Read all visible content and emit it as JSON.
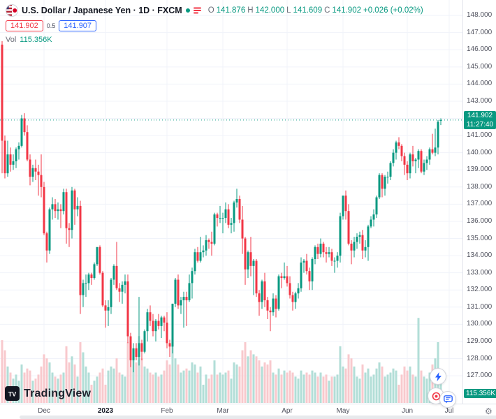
{
  "header": {
    "title": "U.S. Dollar / Japanese Yen · 1D · FXCM",
    "ohlc": {
      "o_label": "O",
      "o_value": "141.876",
      "h_label": "H",
      "h_value": "142.000",
      "l_label": "L",
      "l_value": "141.609",
      "c_label": "C",
      "c_value": "141.902",
      "change": "+0.026 (+0.02%)"
    },
    "bid": "141.902",
    "spread": "0.5",
    "ask": "141.907",
    "vol_label": "Vol",
    "vol_value": "115.356K"
  },
  "price_scale": {
    "price_tag": "141.902",
    "countdown": "11:27:40",
    "vol_tag": "115.356K"
  },
  "footer": {
    "logo_text": "TradingView",
    "gear_icon": "⚙"
  },
  "chart_data": {
    "type": "candlestick",
    "title": "U.S. Dollar / Japanese Yen",
    "timeframe": "1D",
    "exchange": "FXCM",
    "current_price": 141.902,
    "ylim": [
      126.8,
      148.2
    ],
    "y_ticks": [
      148,
      147,
      146,
      145,
      144,
      143,
      142,
      141,
      140,
      139,
      138,
      137,
      136,
      135,
      134,
      133,
      132,
      131,
      130,
      129,
      128,
      127
    ],
    "x_ticks": [
      {
        "label": "Dec",
        "i": 15
      },
      {
        "label": "2023",
        "i": 37,
        "major": true
      },
      {
        "label": "Feb",
        "i": 59
      },
      {
        "label": "Mar",
        "i": 79
      },
      {
        "label": "Apr",
        "i": 102
      },
      {
        "label": "May",
        "i": 122
      },
      {
        "label": "Jun",
        "i": 145
      },
      {
        "label": "Jul",
        "i": 160
      }
    ],
    "colors": {
      "up": "#089981",
      "down": "#f23645",
      "vol_up": "#b2ded7",
      "vol_down": "#f8c9cd",
      "grid": "#f0f3fa",
      "price_line": "#089981",
      "axis_text": "#51535f"
    },
    "volume_unit": "K",
    "candles": [
      [
        146.3,
        146.5,
        138.8,
        140.7,
        310
      ],
      [
        140.7,
        141.0,
        138.5,
        138.8,
        260
      ],
      [
        138.8,
        140.7,
        138.6,
        139.9,
        180
      ],
      [
        139.9,
        140.3,
        138.9,
        139.3,
        150
      ],
      [
        139.3,
        139.9,
        139.0,
        139.5,
        120
      ],
      [
        139.5,
        140.3,
        139.1,
        140.2,
        140
      ],
      [
        140.2,
        140.6,
        139.6,
        140.4,
        110
      ],
      [
        140.4,
        142.2,
        140.3,
        142.0,
        190
      ],
      [
        142.0,
        142.3,
        141.0,
        141.2,
        150
      ],
      [
        141.2,
        141.6,
        139.5,
        139.6,
        170
      ],
      [
        139.6,
        139.9,
        138.1,
        138.6,
        160
      ],
      [
        138.6,
        139.3,
        138.3,
        139.1,
        110
      ],
      [
        139.1,
        139.6,
        138.4,
        138.9,
        120
      ],
      [
        138.9,
        139.3,
        137.5,
        138.7,
        140
      ],
      [
        138.7,
        139.9,
        137.4,
        138.0,
        180
      ],
      [
        138.0,
        138.3,
        135.2,
        135.3,
        240
      ],
      [
        135.3,
        135.4,
        133.6,
        134.3,
        220
      ],
      [
        134.3,
        136.8,
        134.1,
        136.7,
        200
      ],
      [
        136.7,
        137.4,
        136.1,
        137.0,
        150
      ],
      [
        137.0,
        137.3,
        136.2,
        136.6,
        130
      ],
      [
        136.6,
        137.1,
        136.1,
        136.7,
        120
      ],
      [
        136.7,
        137.0,
        135.6,
        136.6,
        140
      ],
      [
        136.6,
        137.9,
        136.4,
        137.7,
        150
      ],
      [
        137.7,
        137.9,
        134.7,
        135.6,
        280
      ],
      [
        135.6,
        135.9,
        134.5,
        135.5,
        200
      ],
      [
        135.5,
        138.0,
        135.0,
        137.8,
        230
      ],
      [
        137.8,
        137.9,
        135.8,
        136.7,
        190
      ],
      [
        136.7,
        137.4,
        136.3,
        136.9,
        130
      ],
      [
        136.9,
        137.2,
        130.6,
        131.7,
        300
      ],
      [
        131.7,
        132.6,
        131.0,
        132.4,
        250
      ],
      [
        132.4,
        132.9,
        131.6,
        132.4,
        180
      ],
      [
        132.4,
        133.0,
        132.0,
        132.9,
        150
      ],
      [
        132.9,
        133.0,
        132.3,
        132.7,
        90
      ],
      [
        132.7,
        133.6,
        132.6,
        133.5,
        110
      ],
      [
        133.5,
        134.5,
        133.4,
        134.5,
        130
      ],
      [
        134.5,
        134.6,
        132.9,
        133.0,
        150
      ],
      [
        133.0,
        133.1,
        131.0,
        131.1,
        170
      ],
      [
        131.1,
        131.4,
        129.8,
        130.8,
        90
      ],
      [
        130.8,
        131.4,
        129.9,
        131.0,
        160
      ],
      [
        131.0,
        132.7,
        130.6,
        132.6,
        180
      ],
      [
        132.6,
        133.5,
        132.3,
        133.4,
        170
      ],
      [
        133.4,
        134.8,
        132.0,
        132.1,
        220
      ],
      [
        132.1,
        132.4,
        131.3,
        131.9,
        150
      ],
      [
        131.9,
        132.5,
        131.2,
        132.3,
        140
      ],
      [
        132.3,
        132.9,
        131.8,
        132.5,
        130
      ],
      [
        132.5,
        132.9,
        128.9,
        129.3,
        300
      ],
      [
        129.3,
        129.5,
        127.5,
        127.9,
        280
      ],
      [
        127.9,
        128.9,
        127.2,
        128.6,
        240
      ],
      [
        128.6,
        128.9,
        127.9,
        128.1,
        200
      ],
      [
        128.1,
        131.6,
        127.6,
        128.9,
        330
      ],
      [
        128.9,
        129.1,
        127.9,
        128.4,
        220
      ],
      [
        128.4,
        129.7,
        128.3,
        129.6,
        180
      ],
      [
        129.6,
        130.9,
        129.0,
        130.7,
        170
      ],
      [
        130.7,
        131.1,
        129.9,
        130.2,
        150
      ],
      [
        130.2,
        130.6,
        129.3,
        129.6,
        140
      ],
      [
        129.6,
        130.3,
        129.0,
        130.2,
        150
      ],
      [
        130.2,
        130.6,
        129.7,
        129.9,
        130
      ],
      [
        129.9,
        130.5,
        129.2,
        130.4,
        140
      ],
      [
        130.4,
        130.5,
        129.6,
        130.1,
        160
      ],
      [
        130.1,
        130.7,
        128.6,
        128.9,
        210
      ],
      [
        128.9,
        129.1,
        128.1,
        128.7,
        190
      ],
      [
        128.7,
        131.2,
        128.3,
        131.2,
        280
      ],
      [
        131.2,
        132.7,
        131.0,
        132.6,
        220
      ],
      [
        132.6,
        132.9,
        130.9,
        131.1,
        190
      ],
      [
        131.1,
        131.6,
        130.6,
        131.4,
        150
      ],
      [
        131.4,
        131.9,
        129.8,
        131.6,
        160
      ],
      [
        131.6,
        131.9,
        129.9,
        131.4,
        170
      ],
      [
        131.4,
        132.9,
        131.3,
        132.4,
        160
      ],
      [
        132.4,
        133.3,
        131.5,
        133.1,
        200
      ],
      [
        133.1,
        134.4,
        132.9,
        134.2,
        190
      ],
      [
        134.2,
        134.5,
        133.6,
        133.7,
        150
      ],
      [
        133.7,
        135.1,
        133.6,
        134.2,
        180
      ],
      [
        134.2,
        134.6,
        133.9,
        134.3,
        90
      ],
      [
        134.3,
        135.2,
        134.0,
        134.9,
        140
      ],
      [
        134.9,
        135.0,
        134.4,
        134.8,
        120
      ],
      [
        134.8,
        135.4,
        134.0,
        134.7,
        140
      ],
      [
        134.7,
        136.5,
        134.6,
        136.4,
        210
      ],
      [
        136.4,
        136.5,
        135.7,
        136.2,
        140
      ],
      [
        136.2,
        136.9,
        135.9,
        136.2,
        150
      ],
      [
        136.2,
        136.5,
        135.3,
        136.2,
        140
      ],
      [
        136.2,
        137.1,
        135.9,
        136.7,
        150
      ],
      [
        136.7,
        137.0,
        135.6,
        135.8,
        160
      ],
      [
        135.8,
        136.2,
        135.3,
        135.9,
        120
      ],
      [
        135.9,
        137.2,
        135.4,
        137.1,
        200
      ],
      [
        137.1,
        137.9,
        136.8,
        137.3,
        190
      ],
      [
        137.3,
        137.5,
        135.9,
        136.1,
        180
      ],
      [
        136.1,
        136.9,
        134.1,
        135.0,
        260
      ],
      [
        135.0,
        135.1,
        132.3,
        133.2,
        300
      ],
      [
        133.2,
        134.3,
        132.7,
        134.2,
        230
      ],
      [
        134.2,
        135.1,
        132.8,
        133.4,
        260
      ],
      [
        133.4,
        133.8,
        131.7,
        133.7,
        240
      ],
      [
        133.7,
        133.8,
        131.6,
        131.8,
        230
      ],
      [
        131.8,
        132.0,
        130.5,
        131.3,
        210
      ],
      [
        131.3,
        132.6,
        130.9,
        132.5,
        180
      ],
      [
        132.5,
        133.0,
        131.0,
        131.4,
        200
      ],
      [
        131.4,
        131.6,
        130.3,
        130.8,
        190
      ],
      [
        130.8,
        131.0,
        129.6,
        130.7,
        210
      ],
      [
        130.7,
        131.8,
        130.5,
        131.5,
        150
      ],
      [
        131.5,
        131.7,
        130.4,
        130.9,
        140
      ],
      [
        130.9,
        132.9,
        130.8,
        132.8,
        170
      ],
      [
        132.8,
        133.0,
        132.1,
        132.7,
        140
      ],
      [
        132.7,
        133.6,
        132.6,
        132.8,
        160
      ],
      [
        132.8,
        133.4,
        132.2,
        132.4,
        150
      ],
      [
        132.4,
        132.8,
        131.5,
        131.7,
        160
      ],
      [
        131.7,
        131.9,
        130.8,
        131.3,
        150
      ],
      [
        131.3,
        131.9,
        130.9,
        131.8,
        130
      ],
      [
        131.8,
        132.4,
        131.5,
        132.1,
        120
      ],
      [
        132.1,
        133.9,
        131.9,
        133.6,
        160
      ],
      [
        133.6,
        133.8,
        133.0,
        133.7,
        140
      ],
      [
        133.7,
        134.1,
        132.9,
        133.1,
        150
      ],
      [
        133.1,
        133.3,
        132.0,
        132.5,
        140
      ],
      [
        132.5,
        133.9,
        132.0,
        133.8,
        160
      ],
      [
        133.8,
        134.6,
        133.5,
        134.5,
        150
      ],
      [
        134.5,
        134.7,
        133.8,
        134.1,
        130
      ],
      [
        134.1,
        135.0,
        133.9,
        134.7,
        150
      ],
      [
        134.7,
        134.8,
        133.9,
        134.2,
        130
      ],
      [
        134.2,
        134.5,
        133.6,
        134.1,
        140
      ],
      [
        134.1,
        134.5,
        133.9,
        134.2,
        110
      ],
      [
        134.2,
        134.4,
        133.4,
        133.7,
        130
      ],
      [
        133.7,
        133.9,
        133.0,
        133.7,
        130
      ],
      [
        133.7,
        134.2,
        133.3,
        134.0,
        140
      ],
      [
        134.0,
        136.5,
        133.6,
        136.3,
        280
      ],
      [
        136.3,
        137.5,
        136.1,
        137.5,
        180
      ],
      [
        137.5,
        137.8,
        136.1,
        136.6,
        170
      ],
      [
        136.6,
        137.0,
        134.6,
        134.7,
        240
      ],
      [
        134.7,
        134.9,
        133.5,
        134.3,
        220
      ],
      [
        134.3,
        135.1,
        133.9,
        134.8,
        180
      ],
      [
        134.8,
        135.3,
        134.4,
        135.1,
        130
      ],
      [
        135.1,
        135.4,
        134.7,
        135.2,
        120
      ],
      [
        135.2,
        135.5,
        133.8,
        134.3,
        190
      ],
      [
        134.3,
        134.9,
        133.9,
        134.5,
        150
      ],
      [
        134.5,
        135.8,
        133.7,
        135.7,
        170
      ],
      [
        135.7,
        136.3,
        135.6,
        136.1,
        130
      ],
      [
        136.1,
        136.7,
        135.7,
        136.4,
        140
      ],
      [
        136.4,
        137.5,
        136.2,
        137.4,
        170
      ],
      [
        137.4,
        138.8,
        137.3,
        138.7,
        200
      ],
      [
        138.7,
        138.8,
        137.4,
        137.9,
        180
      ],
      [
        137.9,
        138.7,
        137.5,
        138.6,
        130
      ],
      [
        138.6,
        138.9,
        138.2,
        138.6,
        140
      ],
      [
        138.6,
        139.5,
        138.4,
        139.4,
        150
      ],
      [
        139.4,
        140.2,
        139.2,
        140.0,
        170
      ],
      [
        140.0,
        140.7,
        139.6,
        140.6,
        160
      ],
      [
        140.6,
        140.9,
        140.2,
        140.4,
        90
      ],
      [
        140.4,
        140.5,
        139.5,
        139.8,
        140
      ],
      [
        139.8,
        140.0,
        138.7,
        139.3,
        180
      ],
      [
        139.3,
        139.5,
        138.4,
        138.8,
        160
      ],
      [
        138.8,
        140.0,
        138.5,
        139.9,
        180
      ],
      [
        139.9,
        140.4,
        139.2,
        139.5,
        140
      ],
      [
        139.5,
        139.7,
        138.8,
        139.6,
        130
      ],
      [
        139.6,
        140.2,
        139.1,
        140.1,
        420
      ],
      [
        140.1,
        140.2,
        138.8,
        138.9,
        160
      ],
      [
        138.9,
        139.6,
        138.7,
        139.4,
        130
      ],
      [
        139.4,
        139.8,
        139.0,
        139.6,
        120
      ],
      [
        139.6,
        140.3,
        139.3,
        140.2,
        150
      ],
      [
        140.2,
        141.1,
        139.9,
        140.0,
        190
      ],
      [
        140.0,
        141.4,
        139.8,
        140.3,
        220
      ],
      [
        140.3,
        141.9,
        139.9,
        141.8,
        300
      ],
      [
        141.876,
        142.0,
        141.609,
        141.902,
        115.356
      ]
    ]
  }
}
